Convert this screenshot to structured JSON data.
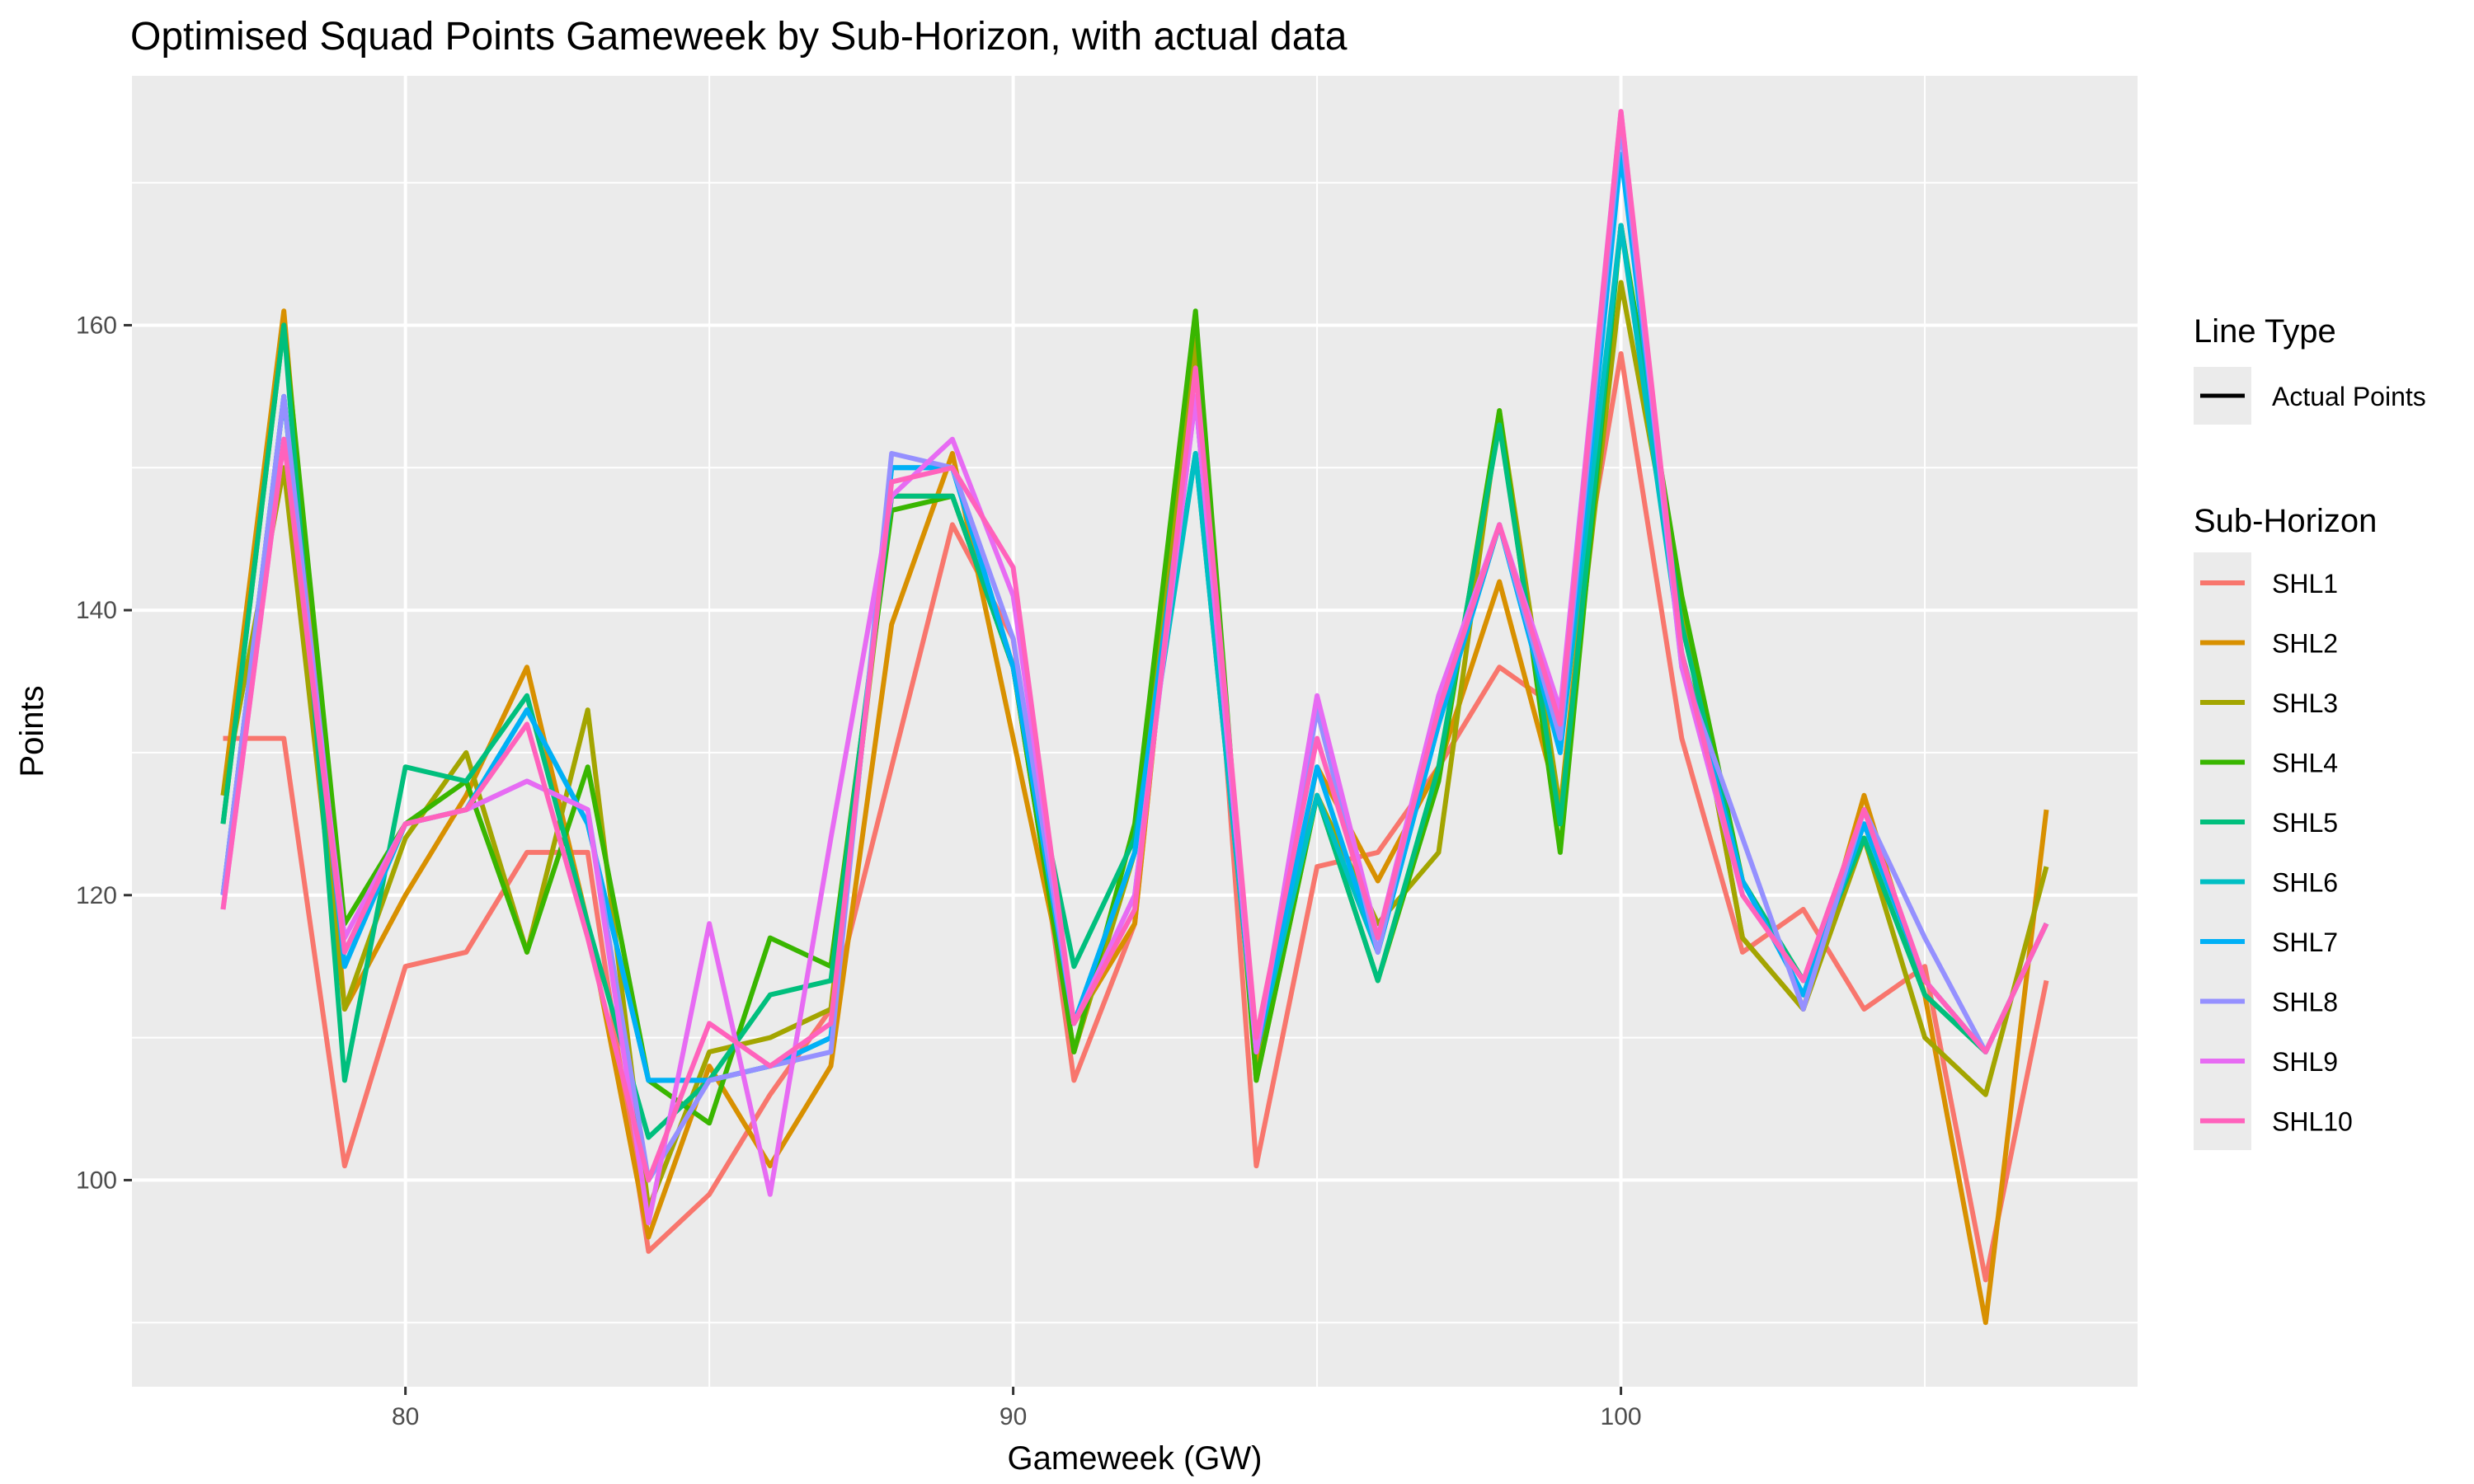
{
  "chart_data": {
    "type": "line",
    "title": "Optimised Squad Points Gameweek by Sub-Horizon, with actual data",
    "xlabel": "Gameweek (GW)",
    "ylabel": "Points",
    "xlim": [
      75.5,
      108.5
    ],
    "ylim": [
      85.5,
      177.5
    ],
    "x_ticks": [
      80,
      90,
      100
    ],
    "y_ticks": [
      100,
      120,
      140,
      160
    ],
    "grid": true,
    "legend_position": "right",
    "linetype_legend": {
      "title": "Line Type",
      "entries": [
        "Actual Points"
      ]
    },
    "color_legend_title": "Sub-Horizon",
    "x": [
      77,
      78,
      79,
      80,
      81,
      82,
      83,
      84,
      85,
      86,
      87,
      88,
      89,
      90,
      91,
      92,
      93,
      94,
      95,
      96,
      97,
      98,
      99,
      100,
      101,
      102,
      103,
      104,
      105,
      106,
      107
    ],
    "series": [
      {
        "name": "SHL1",
        "color": "#F8766D",
        "values": [
          131,
          131,
          101,
          115,
          116,
          123,
          123,
          95,
          99,
          106,
          112,
          129,
          146,
          138,
          107,
          118,
          159,
          101,
          122,
          123,
          129,
          136,
          133,
          158,
          131,
          116,
          119,
          112,
          115,
          93,
          114
        ]
      },
      {
        "name": "SHL2",
        "color": "#D89000",
        "values": [
          127,
          161,
          112,
          120,
          127,
          136,
          118,
          96,
          108,
          101,
          108,
          139,
          151,
          131,
          111,
          118,
          159,
          108,
          129,
          121,
          129,
          142,
          126,
          167,
          140,
          117,
          112,
          127,
          113,
          90,
          126
        ]
      },
      {
        "name": "SHL3",
        "color": "#A3A500",
        "values": [
          127,
          150,
          112,
          124,
          130,
          116,
          133,
          98,
          109,
          110,
          112,
          148,
          148,
          136,
          109,
          123,
          159,
          107,
          127,
          118,
          123,
          154,
          126,
          163,
          140,
          117,
          112,
          124,
          110,
          106,
          122
        ]
      },
      {
        "name": "SHL4",
        "color": "#39B600",
        "values": [
          125,
          160,
          118,
          125,
          128,
          116,
          129,
          107,
          104,
          117,
          115,
          147,
          148,
          136,
          109,
          125,
          161,
          107,
          127,
          114,
          128,
          154,
          123,
          167,
          141,
          121,
          114,
          124,
          113,
          109,
          118
        ]
      },
      {
        "name": "SHL5",
        "color": "#00BF7D",
        "values": [
          125,
          160,
          107,
          129,
          128,
          134,
          118,
          103,
          107,
          113,
          114,
          148,
          148,
          136,
          115,
          124,
          151,
          109,
          127,
          114,
          129,
          153,
          125,
          167,
          139,
          121,
          114,
          124,
          113,
          109,
          118
        ]
      },
      {
        "name": "SHL6",
        "color": "#00BFC4",
        "values": [
          120,
          155,
          115,
          125,
          126,
          133,
          125,
          107,
          107,
          108,
          110,
          150,
          150,
          136,
          111,
          123,
          151,
          109,
          127,
          116,
          132,
          146,
          130,
          167,
          137,
          121,
          113,
          125,
          114,
          109,
          118
        ]
      },
      {
        "name": "SHL7",
        "color": "#00B0F6",
        "values": [
          120,
          155,
          115,
          125,
          126,
          133,
          125,
          107,
          107,
          108,
          110,
          150,
          150,
          136,
          111,
          123,
          155,
          109,
          129,
          116,
          132,
          146,
          130,
          172,
          137,
          121,
          113,
          125,
          114,
          109,
          118
        ]
      },
      {
        "name": "SHL8",
        "color": "#9590FF",
        "values": [
          120,
          155,
          116,
          125,
          126,
          128,
          126,
          100,
          107,
          108,
          109,
          151,
          150,
          138,
          111,
          120,
          155,
          109,
          133,
          116,
          134,
          146,
          131,
          174,
          136,
          124,
          112,
          126,
          117,
          109,
          118
        ]
      },
      {
        "name": "SHL9",
        "color": "#E76BF3",
        "values": [
          119,
          152,
          117,
          125,
          126,
          128,
          126,
          97,
          118,
          99,
          124,
          148,
          152,
          141,
          111,
          120,
          155,
          109,
          134,
          117,
          134,
          146,
          133,
          175,
          136,
          120,
          114,
          126,
          114,
          109,
          118
        ]
      },
      {
        "name": "SHL10",
        "color": "#FF62BC",
        "values": [
          119,
          152,
          116,
          125,
          126,
          132,
          117,
          100,
          111,
          108,
          111,
          149,
          150,
          143,
          111,
          119,
          157,
          110,
          131,
          117,
          133,
          146,
          132,
          175,
          137,
          120,
          114,
          126,
          114,
          109,
          118
        ]
      }
    ]
  }
}
